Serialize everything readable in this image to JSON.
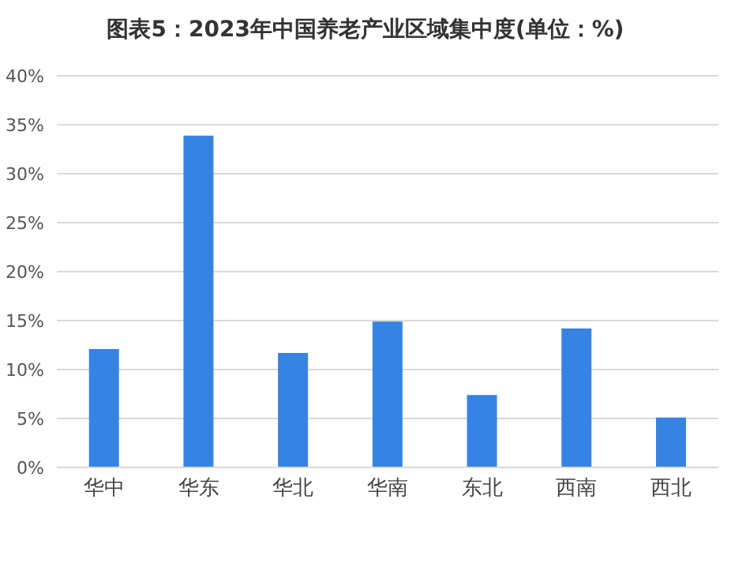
{
  "chart_data": {
    "type": "bar",
    "title": "图表5：2023年中国养老产业区域集中度(单位：%)",
    "categories": [
      "华中",
      "华东",
      "华北",
      "华南",
      "东北",
      "西南",
      "西北"
    ],
    "values": [
      12.1,
      33.9,
      11.7,
      14.9,
      7.4,
      14.2,
      5.1
    ],
    "color": "#3783e4",
    "ylim": [
      0,
      40
    ],
    "yticks": [
      {
        "value": 0,
        "label": "0%"
      },
      {
        "value": 5,
        "label": "5%"
      },
      {
        "value": 10,
        "label": "10%"
      },
      {
        "value": 15,
        "label": "15%"
      },
      {
        "value": 20,
        "label": "20%"
      },
      {
        "value": 25,
        "label": "25%"
      },
      {
        "value": 30,
        "label": "30%"
      },
      {
        "value": 35,
        "label": "35%"
      },
      {
        "value": 40,
        "label": "40%"
      }
    ],
    "grid": "y"
  }
}
